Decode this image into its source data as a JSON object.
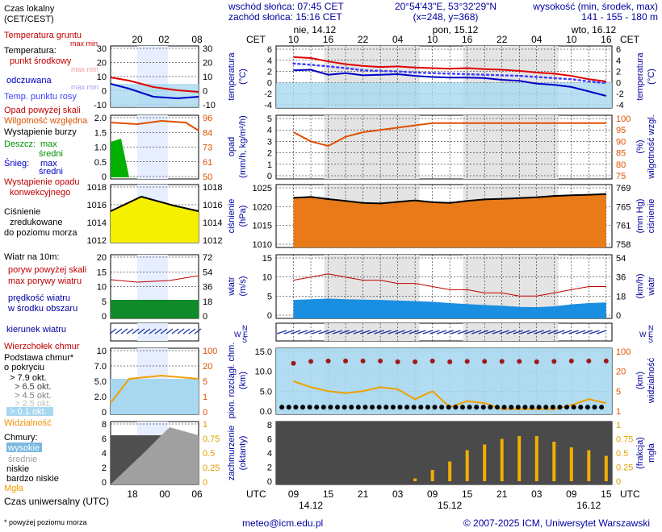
{
  "header": {
    "sunrise": "wschód słońca: 07:45 CET",
    "sunset": "zachód słońca: 15:16 CET",
    "coords": "20°54'43\"E, 53°32'29\"N",
    "grid": "(x=248, y=368)",
    "elev_title": "wysokość (min, środek, max)",
    "elev_values": "141 - 155 - 180 m"
  },
  "legend": {
    "local_time": "Czas lokalny",
    "local_time_zone": "(CET/CEST)",
    "ground_temp": "Temperatura gruntu",
    "ground_temp_sub": "max min",
    "temp_title": "Temperatura:",
    "temp_mid": "punkt środkowy",
    "temp_mid_sub": "max min",
    "temp_felt": "odczuwana",
    "temp_felt_sub": "max min",
    "temp_dew": "Temp. punktu rosy",
    "precip_above": "Opad powyżej skali",
    "humidity": "Wilgotność względna",
    "storm": "Wystąpienie burzy",
    "rain": "Deszcz:",
    "rain_max": "max",
    "rain_mid": "średni",
    "snow": "Śnieg:",
    "snow_max": "max",
    "snow_mid": "średni",
    "conv": "Wystąpienie opadu",
    "conv2": "konwekcyjnego",
    "pressure1": "Ciśnienie",
    "pressure2": "zredukowane",
    "pressure3": "do poziomu morza",
    "wind_title": "Wiatr na 10m:",
    "gust_above": "poryw powyżej skali",
    "gust_max": "max porywy wiatru",
    "wind_speed": "prędkość wiatru",
    "wind_area": "w środku obszaru",
    "wind_dir": "kierunek wiatru",
    "cloud_top": "Wierzchołek chmur",
    "cloud_base1": "Podstawa chmur*",
    "cloud_base2": "o pokryciu",
    "okt79": "> 7.9 okt.",
    "okt65": "> 6.5 okt.",
    "okt45": "> 4.5 okt.",
    "okt25": "> 2.5 okt.",
    "okt01": "> 0.1 okt.",
    "visibility": "Widzialność",
    "clouds_title": "Chmury:",
    "cl_high": "wysokie",
    "cl_mid": "średnie",
    "cl_low": "niskie",
    "cl_vlow": "bardzo niskie",
    "fog": "Mgła",
    "utc_label": "Czas uniwersalny (UTC)",
    "footnote": "* powyżej poziomu morza"
  },
  "mini_axis": {
    "top_hours": [
      "20",
      "02",
      "08"
    ],
    "bottom_hours": [
      "18",
      "00",
      "06"
    ]
  },
  "main_axis": {
    "cet": "CET",
    "utc": "UTC",
    "days_top": [
      "nie, 14.12",
      "pon, 15.12",
      "wto, 16.12"
    ],
    "hours_top": [
      "10",
      "16",
      "22",
      "04",
      "10",
      "16",
      "22",
      "04",
      "10",
      "16"
    ],
    "hours_bottom": [
      "09",
      "15",
      "21",
      "03",
      "09",
      "15",
      "21",
      "03",
      "09",
      "15"
    ],
    "dates_bottom": [
      "14.12",
      "15.12",
      "16.12"
    ]
  },
  "panel_labels": {
    "temp_l": "temperatura",
    "temp_l2": "(°C)",
    "temp_r": "temperatura",
    "temp_r2": "(°C)",
    "precip_l": "opad",
    "precip_l2": "(mm/h, kg/m²/h)",
    "precip_r": "wilgotność wzgl.",
    "precip_r2": "(%)",
    "press_l": "ciśnienie",
    "press_l2": "(hPa)",
    "press_r": "ciśnienie",
    "press_r2": "(mm Hg)",
    "wind_l": "wiatr",
    "wind_l2": "(m/s)",
    "wind_r": "wiatr",
    "wind_r2": "(km/h)",
    "dir_l": "N",
    "dir_l2": "W E",
    "dir_l3": "S",
    "cloud_l": "pion. rozciągł. chm.",
    "cloud_l2": "(km)",
    "cloud_r": "widzialność",
    "cloud_r2": "(km)",
    "cover_l": "zachmurzenie",
    "cover_l2": "(oktanty)",
    "cover_r": "mgła",
    "cover_r2": "(frakcja)"
  },
  "ticks": {
    "temp_left": [
      "6",
      "4",
      "2",
      "0",
      "-2",
      "-4"
    ],
    "temp_right": [
      "6",
      "4",
      "2",
      "0",
      "-2",
      "-4"
    ],
    "precip_left": [
      "5",
      "4",
      "3",
      "2",
      "1",
      "0"
    ],
    "precip_right": [
      "100",
      "95",
      "90",
      "85",
      "80",
      "75"
    ],
    "press_left": [
      "1025",
      "1020",
      "1015",
      "1010"
    ],
    "press_right": [
      "769",
      "765",
      "761",
      "758"
    ],
    "wind_left": [
      "15",
      "10",
      "5",
      "0"
    ],
    "wind_right": [
      "54",
      "36",
      "18",
      "0"
    ],
    "cloud_left": [
      "15.0",
      "10.0",
      "5.0",
      "0.0"
    ],
    "cloud_right": [
      "100",
      "20",
      "5",
      "1",
      "0"
    ],
    "cover_left": [
      "8",
      "6",
      "4",
      "2",
      "0"
    ],
    "cover_right": [
      "1",
      "0.75",
      "0.5",
      "0.25",
      "0"
    ],
    "mini_temp_left": [
      "30",
      "20",
      "10",
      "0",
      "-10"
    ],
    "mini_temp_right": [
      "30",
      "20",
      "10",
      "0",
      "-10"
    ],
    "mini_precip_left": [
      "2.0",
      "1.5",
      "1.0",
      "0.5",
      "0"
    ],
    "mini_precip_right": [
      "96",
      "84",
      "73",
      "61",
      "50"
    ],
    "mini_press_left": [
      "1018",
      "1016",
      "1014",
      "1012"
    ],
    "mini_press_right": [
      "1018",
      "1016",
      "1014",
      "1012"
    ],
    "mini_wind_left": [
      "20",
      "15",
      "10",
      "5",
      "0"
    ],
    "mini_wind_right": [
      "72",
      "54",
      "36",
      "18",
      "0"
    ],
    "mini_cloud_left": [
      "10",
      "7.0",
      "5.0",
      "2.0",
      "0"
    ],
    "mini_cloud_right": [
      "100",
      "20",
      "5",
      "1",
      "0"
    ],
    "mini_cover_left": [
      "8",
      "6",
      "4",
      "2",
      "0"
    ],
    "mini_cover_right": [
      "1",
      "0.75",
      "0.5",
      "0.25",
      "0"
    ]
  },
  "footer": {
    "email": "meteo@icm.edu.pl",
    "copyright": "© 2007-2025 ICM, Uniwersytet Warszawski"
  },
  "colors": {
    "temp": "#e00000",
    "dew": "#4040ff",
    "felt": "#0000c8",
    "humidity": "#e05000",
    "pressure_fill": "#e87a1a",
    "wind_gust": "#c00000",
    "wind_fill": "#1a8ee0",
    "dir": "#1a2ea0",
    "cloud_top": "#a01818",
    "visibility": "#f0a000",
    "fog": "#f0b000",
    "sky": "#a8d8f0"
  },
  "chart_data": {
    "type": "line",
    "x_hours_utc": [
      9,
      12,
      15,
      18,
      21,
      24,
      27,
      30,
      33,
      36,
      39,
      42,
      45,
      48,
      51,
      54,
      57,
      60,
      63
    ],
    "series": [
      {
        "values": [
          4.6,
          4.4,
          3.8,
          3.3,
          3.0,
          2.8,
          2.9,
          2.7,
          2.6,
          2.5,
          2.6,
          2.4,
          2.3,
          2.1,
          1.8,
          1.6,
          1.2,
          0.6,
          0.2
        ]
      },
      {
        "values": [
          2.2,
          2.3,
          1.4,
          1.7,
          1.3,
          1.4,
          1.5,
          1.2,
          1.0,
          0.9,
          0.9,
          0.8,
          0.5,
          0.3,
          -0.2,
          -0.4,
          -0.8,
          -1.6,
          -2.4
        ]
      },
      {
        "values": [
          3.4,
          3.2,
          2.9,
          2.6,
          2.2,
          2.1,
          2.0,
          1.8,
          1.7,
          1.6,
          1.5,
          1.4,
          1.3,
          1.2,
          1.0,
          0.8,
          0.6,
          0.2,
          -0.1
        ]
      },
      {
        "values": [
          94,
          90,
          88,
          92,
          94,
          95,
          96,
          97,
          98,
          98,
          98,
          98,
          98,
          98,
          98,
          98,
          98,
          98,
          98
        ]
      },
      {
        "values": [
          1022.8,
          1023.1,
          1022.4,
          1021.8,
          1021.2,
          1021.0,
          1021.5,
          1022.0,
          1021.4,
          1021.2,
          1021.8,
          1022.3,
          1022.5,
          1022.7,
          1023.0,
          1023.4,
          1023.6,
          1023.8,
          1024.0
        ]
      },
      {
        "values": [
          11,
          12,
          13,
          12,
          11,
          11,
          10,
          10,
          9,
          8,
          8,
          7,
          7,
          6,
          6,
          7,
          8,
          9,
          9
        ]
      },
      {
        "values": [
          4.8,
          5.0,
          5.2,
          5.0,
          4.9,
          4.8,
          4.6,
          4.4,
          4.2,
          3.8,
          3.5,
          3.2,
          3.0,
          2.6,
          2.5,
          2.8,
          3.4,
          3.8,
          4.0
        ]
      },
      {
        "values": [
          8.5,
          9.0,
          9.1,
          9.1,
          9.1,
          9.1,
          8.9,
          8.9,
          9.1,
          8.9,
          9.0,
          9.0,
          9.0,
          9.0,
          8.9,
          9.0,
          9.1,
          9.1,
          9.1
        ]
      },
      {
        "values": [
          7.5,
          6.0,
          5.0,
          4.5,
          5.0,
          6.0,
          5.5,
          3.0,
          5.0,
          1.0,
          2.5,
          2.0,
          0.5,
          0.5,
          0.5,
          0.5,
          1.5,
          3.0,
          2.0
        ]
      },
      {
        "values": [
          0.0,
          0.0,
          0.0,
          0.0,
          0.0,
          0.0,
          0.0,
          0.05,
          0.2,
          0.35,
          0.55,
          0.65,
          0.75,
          0.8,
          0.8,
          0.7,
          0.6,
          0.55,
          0.45
        ]
      }
    ],
    "ylim_temp": [
      -4,
      7
    ],
    "ylim_humidity": [
      75,
      100
    ],
    "ylim_pressure": [
      1008,
      1026
    ],
    "ylim_wind": [
      0,
      18
    ]
  }
}
